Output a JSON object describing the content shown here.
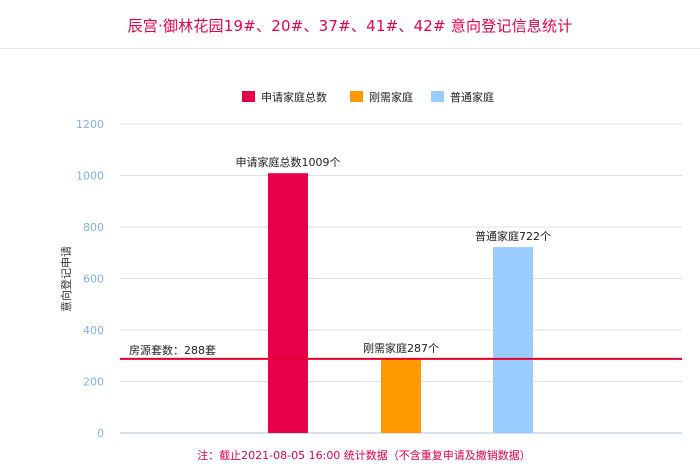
{
  "title": "辰宫·御林花园19#、20#、37#、41#、42# 意向登记信息统计",
  "footnote": "注：截止2021-08-05 16:00 统计数据（不含重复申请及撤销数据）",
  "colors": {
    "title": "#e8004a",
    "footnote": "#e8004a",
    "axis_tick": "#7fb2e5",
    "grid": "#e0e0e0",
    "ref_line": "#e8002a"
  },
  "chart_data": {
    "type": "bar",
    "categories": [
      "申请家庭总数",
      "刚需家庭",
      "普通家庭"
    ],
    "values": [
      1009,
      287,
      722
    ],
    "colors": [
      "#e8004a",
      "#ff9900",
      "#99ccff"
    ],
    "data_labels": [
      "申请家庭总数1009个",
      "刚需家庭287个",
      "普通家庭722个"
    ],
    "legend": [
      "申请家庭总数",
      "刚需家庭",
      "普通家庭"
    ],
    "legend_position": "top",
    "ylabel": "意向登记申请",
    "xlabel": "",
    "ylim": [
      0,
      1200
    ],
    "yticks": [
      "0",
      "200",
      "400",
      "600",
      "800",
      "1000",
      "1200"
    ],
    "grid": true,
    "reference_line": {
      "value": 288,
      "label": "房源套数：288套"
    }
  }
}
